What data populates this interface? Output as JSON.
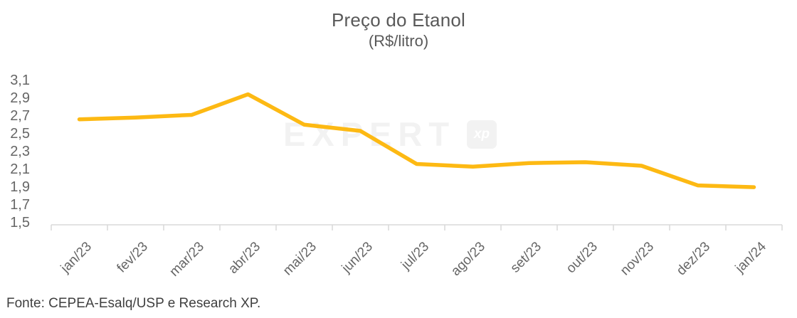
{
  "header": {
    "title": "Preço do Etanol",
    "subtitle": "(R$/litro)"
  },
  "watermark": {
    "text": "EXPERT",
    "logo_text": "xp"
  },
  "footer": {
    "source": "Fonte: CEPEA-Esalq/USP e Research XP."
  },
  "colors": {
    "line": "#FDB913",
    "axis": "#D9D9D9",
    "tick_label": "#666666",
    "title_text": "#595959",
    "watermark": "#F2F2F2",
    "source_text": "#404040"
  },
  "chart_data": {
    "type": "line",
    "title": "Preço do Etanol",
    "subtitle": "(R$/litro)",
    "xlabel": "",
    "ylabel": "",
    "categories": [
      "jan/23",
      "fev/23",
      "mar/23",
      "abr/23",
      "mai/23",
      "jun/23",
      "jul/23",
      "ago/23",
      "set/23",
      "out/23",
      "nov/23",
      "dez/23",
      "jan/24"
    ],
    "values": [
      2.66,
      2.68,
      2.71,
      2.94,
      2.6,
      2.53,
      2.16,
      2.13,
      2.17,
      2.18,
      2.14,
      1.92,
      1.9
    ],
    "ylim": [
      1.5,
      3.1
    ],
    "ytick_step": 0.2,
    "ytick_labels": [
      "3,1",
      "2,9",
      "2,7",
      "2,5",
      "2,3",
      "2,1",
      "1,9",
      "1,7",
      "1,5"
    ],
    "grid": false,
    "legend_position": "none",
    "line_color": "#FDB913",
    "line_width": 5.5
  }
}
